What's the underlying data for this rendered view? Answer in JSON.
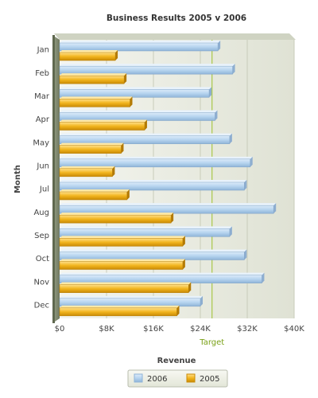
{
  "chart_data": {
    "type": "bar",
    "orientation": "horizontal",
    "title": "Business Results 2005 v 2006",
    "xlabel": "Revenue",
    "ylabel": "Month",
    "categories": [
      "Jan",
      "Feb",
      "Mar",
      "Apr",
      "May",
      "Jun",
      "Jul",
      "Aug",
      "Sep",
      "Oct",
      "Nov",
      "Dec"
    ],
    "series": [
      {
        "name": "2006",
        "color": "#b6d4ef",
        "values": [
          27000,
          29500,
          25500,
          26500,
          29000,
          32500,
          31500,
          36500,
          29000,
          31500,
          34500,
          24000
        ]
      },
      {
        "name": "2005",
        "color": "#f2b51e",
        "values": [
          9500,
          11000,
          12000,
          14500,
          10500,
          9000,
          11500,
          19000,
          21000,
          21000,
          22000,
          20000
        ]
      }
    ],
    "xlim": [
      0,
      40000
    ],
    "xticks": [
      "$0",
      "$8K",
      "$16K",
      "$24K",
      "$32K",
      "$40K"
    ],
    "target": {
      "label": "Target",
      "value": 26000
    },
    "grid": true,
    "legend": "bottom"
  }
}
